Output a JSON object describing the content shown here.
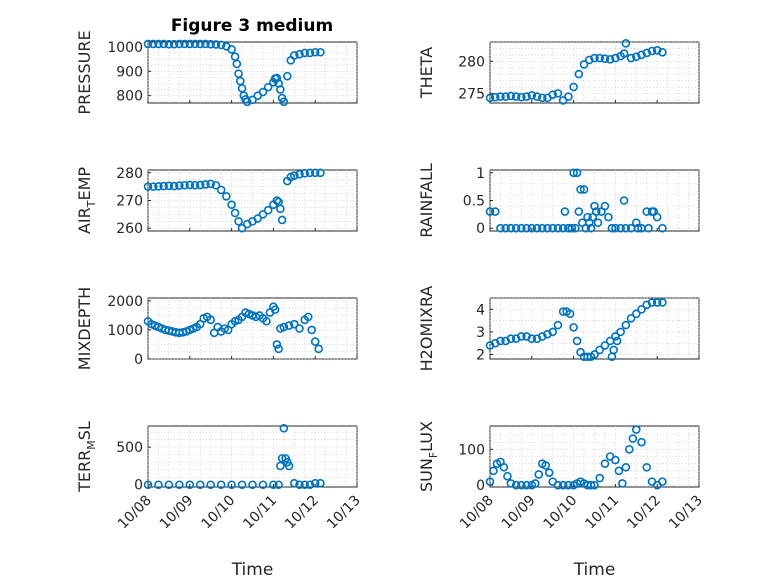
{
  "figure": {
    "title": "Figure 3 medium",
    "marker_color": "#0072BD"
  },
  "chart_data": [
    {
      "type": "scatter",
      "title": "Figure 3 medium",
      "ylabel": "PRESSURE",
      "ylim": [
        770,
        1020
      ],
      "yticks": [
        800,
        900,
        1000
      ],
      "xlim": [
        "10/08",
        "10/13"
      ],
      "xticks": [
        "10/08",
        "10/09",
        "10/10",
        "10/11",
        "10/12",
        "10/13"
      ],
      "show_xticklabels": false,
      "x": [
        "10/08 00:00",
        "10/08 03:00",
        "10/08 06:00",
        "10/08 09:00",
        "10/08 12:00",
        "10/08 15:00",
        "10/08 18:00",
        "10/08 21:00",
        "10/09 00:00",
        "10/09 03:00",
        "10/09 06:00",
        "10/09 09:00",
        "10/09 12:00",
        "10/09 15:00",
        "10/09 18:00",
        "10/09 21:00",
        "10/10 00:00",
        "10/10 02:00",
        "10/10 03:00",
        "10/10 04:00",
        "10/10 05:00",
        "10/10 06:00",
        "10/10 07:00",
        "10/10 08:00",
        "10/10 09:00",
        "10/10 12:00",
        "10/10 15:00",
        "10/10 18:00",
        "10/10 21:00",
        "10/11 00:00",
        "10/11 01:00",
        "10/11 02:00",
        "10/11 03:00",
        "10/11 04:00",
        "10/11 05:00",
        "10/11 06:00",
        "10/11 08:00",
        "10/11 10:00",
        "10/11 12:00",
        "10/11 15:00",
        "10/11 18:00",
        "10/11 21:00",
        "10/12 00:00",
        "10/12 03:00"
      ],
      "y": [
        1012,
        1012,
        1012,
        1012,
        1011,
        1011,
        1012,
        1012,
        1012,
        1012,
        1012,
        1012,
        1011,
        1010,
        1008,
        1002,
        990,
        960,
        930,
        890,
        860,
        830,
        800,
        785,
        775,
        783,
        800,
        815,
        835,
        855,
        870,
        872,
        850,
        825,
        790,
        775,
        880,
        945,
        965,
        970,
        975,
        975,
        978,
        978
      ]
    },
    {
      "type": "scatter",
      "ylabel": "THETA",
      "ylim": [
        273.5,
        283
      ],
      "yticks": [
        275,
        280
      ],
      "xlim": [
        "10/08",
        "10/13"
      ],
      "xticks": [
        "10/08",
        "10/09",
        "10/10",
        "10/11",
        "10/12",
        "10/13"
      ],
      "show_xticklabels": false,
      "x": [
        "10/08 00:00",
        "10/08 03:00",
        "10/08 06:00",
        "10/08 09:00",
        "10/08 12:00",
        "10/08 15:00",
        "10/08 18:00",
        "10/08 21:00",
        "10/09 00:00",
        "10/09 03:00",
        "10/09 06:00",
        "10/09 09:00",
        "10/09 12:00",
        "10/09 15:00",
        "10/09 18:00",
        "10/09 21:00",
        "10/10 00:00",
        "10/10 03:00",
        "10/10 06:00",
        "10/10 09:00",
        "10/10 12:00",
        "10/10 15:00",
        "10/10 18:00",
        "10/10 21:00",
        "10/11 00:00",
        "10/11 03:00",
        "10/11 05:00",
        "10/11 06:00",
        "10/11 09:00",
        "10/11 12:00",
        "10/11 15:00",
        "10/11 18:00",
        "10/11 21:00",
        "10/12 00:00",
        "10/12 03:00"
      ],
      "y": [
        274.3,
        274.4,
        274.5,
        274.5,
        274.6,
        274.5,
        274.4,
        274.5,
        274.7,
        274.5,
        274.3,
        274.3,
        274.8,
        275.0,
        273.9,
        274.5,
        276.0,
        278.0,
        279.5,
        280.2,
        280.5,
        280.5,
        280.4,
        280.3,
        280.5,
        280.8,
        281.2,
        282.8,
        280.5,
        280.7,
        281.0,
        281.3,
        281.6,
        281.7,
        281.4
      ]
    },
    {
      "type": "scatter",
      "ylabel": "AIR_TEMP",
      "ylim": [
        259,
        281
      ],
      "yticks": [
        260,
        270,
        280
      ],
      "xlim": [
        "10/08",
        "10/13"
      ],
      "xticks": [
        "10/08",
        "10/09",
        "10/10",
        "10/11",
        "10/12",
        "10/13"
      ],
      "show_xticklabels": false,
      "x": [
        "10/08 00:00",
        "10/08 03:00",
        "10/08 06:00",
        "10/08 09:00",
        "10/08 12:00",
        "10/08 15:00",
        "10/08 18:00",
        "10/08 21:00",
        "10/09 00:00",
        "10/09 03:00",
        "10/09 06:00",
        "10/09 09:00",
        "10/09 12:00",
        "10/09 15:00",
        "10/09 18:00",
        "10/09 21:00",
        "10/10 00:00",
        "10/10 02:00",
        "10/10 04:00",
        "10/10 06:00",
        "10/10 09:00",
        "10/10 12:00",
        "10/10 15:00",
        "10/10 18:00",
        "10/10 21:00",
        "10/11 00:00",
        "10/11 02:00",
        "10/11 03:00",
        "10/11 04:00",
        "10/11 05:00",
        "10/11 08:00",
        "10/11 10:00",
        "10/11 12:00",
        "10/11 15:00",
        "10/11 18:00",
        "10/11 21:00",
        "10/12 00:00",
        "10/12 03:00"
      ],
      "y": [
        275,
        275,
        275.1,
        275.2,
        275.3,
        275.2,
        275.4,
        275.5,
        275.6,
        275.5,
        275.6,
        275.8,
        276,
        275.5,
        273.8,
        271.5,
        268.5,
        265.5,
        262.5,
        260,
        261.5,
        262.5,
        263.5,
        265,
        266.5,
        268.5,
        270,
        269.5,
        267,
        263,
        277,
        278.5,
        279,
        279.5,
        279.8,
        280,
        280,
        280
      ]
    },
    {
      "type": "scatter",
      "ylabel": "RAINFALL",
      "ylim": [
        -0.05,
        1.05
      ],
      "yticks": [
        0,
        0.5,
        1
      ],
      "xlim": [
        "10/08",
        "10/13"
      ],
      "xticks": [
        "10/08",
        "10/09",
        "10/10",
        "10/11",
        "10/12",
        "10/13"
      ],
      "show_xticklabels": false,
      "x": [
        "10/08 00:00",
        "10/08 03:00",
        "10/08 06:00",
        "10/08 09:00",
        "10/08 12:00",
        "10/08 15:00",
        "10/08 18:00",
        "10/08 21:00",
        "10/09 00:00",
        "10/09 03:00",
        "10/09 06:00",
        "10/09 09:00",
        "10/09 12:00",
        "10/09 15:00",
        "10/09 18:00",
        "10/09 21:00",
        "10/10 00:00",
        "10/10 02:00",
        "10/10 04:00",
        "10/10 06:00",
        "10/10 08:00",
        "10/10 10:00",
        "10/10 12:00",
        "10/10 14:00",
        "10/10 16:00",
        "10/10 18:00",
        "10/10 20:00",
        "10/10 22:00",
        "10/11 00:00",
        "10/11 03:00",
        "10/11 06:00",
        "10/11 09:00",
        "10/11 12:00",
        "10/11 15:00",
        "10/11 18:00",
        "10/11 21:00",
        "10/12 00:00",
        "10/12 03:00",
        "10/09 19:00",
        "10/09 21:00",
        "10/09 23:00",
        "10/10 01:00",
        "10/10 03:00",
        "10/10 05:00",
        "10/10 07:00",
        "10/10 09:00",
        "10/10 11:00",
        "10/10 13:00",
        "10/11 05:00",
        "10/11 13:00",
        "10/11 19:00",
        "10/11 22:00"
      ],
      "y": [
        0.3,
        0.3,
        0,
        0,
        0,
        0,
        0,
        0,
        0,
        0,
        0,
        0,
        0,
        0,
        0,
        0,
        1,
        1,
        0.7,
        0.7,
        0.2,
        0,
        0.4,
        0.1,
        0.3,
        0.4,
        0.2,
        0,
        0,
        0,
        0,
        0,
        0.1,
        0,
        0.3,
        0.3,
        0.2,
        0,
        0.3,
        0,
        0,
        0,
        0.3,
        0.1,
        0,
        0.1,
        0.2,
        0.3,
        0.5,
        0,
        0,
        0.3
      ]
    },
    {
      "type": "scatter",
      "ylabel": "MIXDEPTH",
      "ylim": [
        0,
        2100
      ],
      "yticks": [
        0,
        1000,
        2000
      ],
      "xlim": [
        "10/08",
        "10/13"
      ],
      "xticks": [
        "10/08",
        "10/09",
        "10/10",
        "10/11",
        "10/12",
        "10/13"
      ],
      "show_xticklabels": false,
      "x": [
        "10/08 00:00",
        "10/08 02:00",
        "10/08 04:00",
        "10/08 06:00",
        "10/08 08:00",
        "10/08 10:00",
        "10/08 12:00",
        "10/08 14:00",
        "10/08 16:00",
        "10/08 18:00",
        "10/08 20:00",
        "10/08 22:00",
        "10/09 00:00",
        "10/09 02:00",
        "10/09 04:00",
        "10/09 06:00",
        "10/09 08:00",
        "10/09 10:00",
        "10/09 12:00",
        "10/09 14:00",
        "10/09 16:00",
        "10/09 18:00",
        "10/09 20:00",
        "10/09 22:00",
        "10/10 00:00",
        "10/10 02:00",
        "10/10 04:00",
        "10/10 06:00",
        "10/10 08:00",
        "10/10 10:00",
        "10/10 12:00",
        "10/10 14:00",
        "10/10 16:00",
        "10/10 18:00",
        "10/10 20:00",
        "10/10 22:00",
        "10/11 00:00",
        "10/11 01:00",
        "10/11 02:00",
        "10/11 03:00",
        "10/11 04:00",
        "10/11 06:00",
        "10/11 09:00",
        "10/11 12:00",
        "10/11 15:00",
        "10/11 18:00",
        "10/11 20:00",
        "10/11 22:00",
        "10/12 00:00",
        "10/12 02:00"
      ],
      "y": [
        1300,
        1200,
        1150,
        1100,
        1050,
        1000,
        980,
        950,
        920,
        900,
        920,
        950,
        1000,
        1050,
        1100,
        1200,
        1400,
        1450,
        1350,
        900,
        1100,
        950,
        1050,
        1000,
        1200,
        1300,
        1350,
        1450,
        1600,
        1550,
        1500,
        1450,
        1500,
        1400,
        1300,
        1600,
        1800,
        1700,
        500,
        350,
        1050,
        1100,
        1150,
        1200,
        1050,
        1350,
        1450,
        1000,
        600,
        350
      ]
    },
    {
      "type": "scatter",
      "ylabel": "H2OMIXRA",
      "ylim": [
        1.8,
        4.5
      ],
      "yticks": [
        2,
        3,
        4
      ],
      "xlim": [
        "10/08",
        "10/13"
      ],
      "xticks": [
        "10/08",
        "10/09",
        "10/10",
        "10/11",
        "10/12",
        "10/13"
      ],
      "show_xticklabels": false,
      "x": [
        "10/08 00:00",
        "10/08 03:00",
        "10/08 06:00",
        "10/08 09:00",
        "10/08 12:00",
        "10/08 15:00",
        "10/08 18:00",
        "10/08 21:00",
        "10/09 00:00",
        "10/09 03:00",
        "10/09 06:00",
        "10/09 09:00",
        "10/09 12:00",
        "10/09 15:00",
        "10/09 18:00",
        "10/09 20:00",
        "10/09 22:00",
        "10/10 00:00",
        "10/10 02:00",
        "10/10 04:00",
        "10/10 06:00",
        "10/10 08:00",
        "10/10 10:00",
        "10/10 12:00",
        "10/10 15:00",
        "10/10 18:00",
        "10/10 21:00",
        "10/11 00:00",
        "10/11 03:00",
        "10/11 06:00",
        "10/11 09:00",
        "10/11 12:00",
        "10/11 15:00",
        "10/11 18:00",
        "10/11 21:00",
        "10/12 00:00",
        "10/12 03:00",
        "10/10 22:00",
        "10/10 23:00",
        "10/11 01:00"
      ],
      "y": [
        2.4,
        2.5,
        2.6,
        2.6,
        2.7,
        2.7,
        2.8,
        2.8,
        2.7,
        2.7,
        2.8,
        2.9,
        3.0,
        3.3,
        3.9,
        3.9,
        3.8,
        3.2,
        2.6,
        2.1,
        1.9,
        1.9,
        1.9,
        2.0,
        2.2,
        2.4,
        2.6,
        2.8,
        3.0,
        3.3,
        3.6,
        3.8,
        4.0,
        4.2,
        4.3,
        4.3,
        4.3,
        1.9,
        2.2,
        2.6
      ]
    },
    {
      "type": "scatter",
      "ylabel": "TERR_MSL",
      "ylim": [
        -30,
        780
      ],
      "yticks": [
        0,
        500
      ],
      "xlim": [
        "10/08",
        "10/13"
      ],
      "xticks": [
        "10/08",
        "10/09",
        "10/10",
        "10/11",
        "10/12",
        "10/13"
      ],
      "show_xticklabels": true,
      "xlabel": "Time",
      "x": [
        "10/08 00:00",
        "10/08 06:00",
        "10/08 12:00",
        "10/08 18:00",
        "10/09 00:00",
        "10/09 06:00",
        "10/09 12:00",
        "10/09 18:00",
        "10/10 00:00",
        "10/10 06:00",
        "10/10 12:00",
        "10/10 18:00",
        "10/11 00:00",
        "10/11 03:00",
        "10/11 04:00",
        "10/11 05:00",
        "10/11 06:00",
        "10/11 07:00",
        "10/11 08:00",
        "10/11 09:00",
        "10/11 12:00",
        "10/11 15:00",
        "10/11 18:00",
        "10/11 21:00",
        "10/12 00:00",
        "10/12 03:00"
      ],
      "y": [
        0,
        0,
        0,
        0,
        0,
        0,
        0,
        0,
        0,
        0,
        0,
        0,
        0,
        0,
        250,
        350,
        750,
        350,
        300,
        250,
        20,
        0,
        0,
        0,
        20,
        20
      ]
    },
    {
      "type": "scatter",
      "ylabel": "SUN_FLUX",
      "ylim": [
        -5,
        165
      ],
      "yticks": [
        0,
        100
      ],
      "xlim": [
        "10/08",
        "10/13"
      ],
      "xticks": [
        "10/08",
        "10/09",
        "10/10",
        "10/11",
        "10/12",
        "10/13"
      ],
      "show_xticklabels": true,
      "xlabel": "Time",
      "x": [
        "10/08 00:00",
        "10/08 02:00",
        "10/08 04:00",
        "10/08 06:00",
        "10/08 08:00",
        "10/08 10:00",
        "10/08 12:00",
        "10/08 15:00",
        "10/08 18:00",
        "10/08 21:00",
        "10/09 00:00",
        "10/09 02:00",
        "10/09 04:00",
        "10/09 06:00",
        "10/09 08:00",
        "10/09 10:00",
        "10/09 12:00",
        "10/09 15:00",
        "10/09 18:00",
        "10/09 21:00",
        "10/10 00:00",
        "10/10 02:00",
        "10/10 04:00",
        "10/10 06:00",
        "10/10 08:00",
        "10/10 10:00",
        "10/10 12:00",
        "10/10 15:00",
        "10/10 18:00",
        "10/10 21:00",
        "10/11 00:00",
        "10/11 02:00",
        "10/11 04:00",
        "10/11 06:00",
        "10/11 08:00",
        "10/11 10:00",
        "10/11 12:00",
        "10/11 15:00",
        "10/11 18:00",
        "10/11 21:00",
        "10/12 00:00",
        "10/12 03:00"
      ],
      "y": [
        10,
        40,
        60,
        65,
        50,
        25,
        5,
        0,
        0,
        0,
        0,
        5,
        30,
        60,
        55,
        35,
        10,
        0,
        0,
        0,
        0,
        5,
        10,
        5,
        0,
        0,
        0,
        20,
        60,
        80,
        70,
        40,
        5,
        50,
        100,
        130,
        155,
        120,
        50,
        10,
        0,
        10
      ]
    }
  ]
}
